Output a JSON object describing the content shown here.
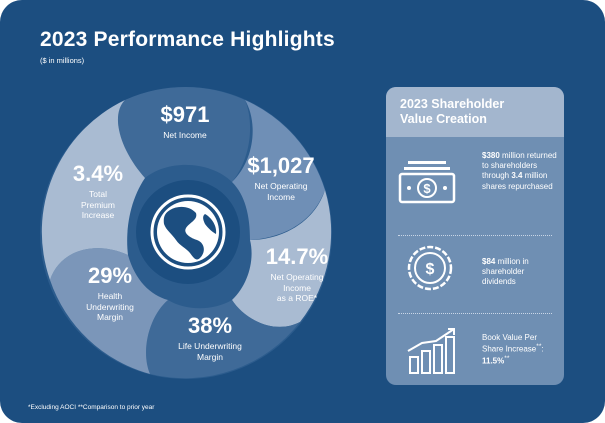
{
  "header": {
    "title": "2023 Performance Highlights",
    "subtitle": "($ in millions)"
  },
  "wheel": {
    "segments": [
      {
        "value": "$971",
        "label": "Net Income"
      },
      {
        "value": "$1,027",
        "label_lines": [
          "Net Operating",
          "Income"
        ]
      },
      {
        "value": "14.7%",
        "label_lines": [
          "Net Operating",
          "Income",
          "as a ROE*"
        ]
      },
      {
        "value": "38%",
        "label_lines": [
          "Life Underwriting",
          "Margin"
        ]
      },
      {
        "value": "29%",
        "label_lines": [
          "Health",
          "Underwriting",
          "Margin"
        ]
      },
      {
        "value": "3.4%",
        "label_lines": [
          "Total",
          "Premium",
          "Increase"
        ]
      }
    ],
    "center_icon": "globe-icon"
  },
  "panel": {
    "title_lines": [
      "2023 Shareholder",
      "Value Creation"
    ],
    "items": [
      {
        "icon": "dollar-bill-icon",
        "bold_amount": "$380",
        "text_a": " million returned to shareholders through ",
        "bold_shares": "3.4",
        "text_b": " million shares repurchased"
      },
      {
        "icon": "dollar-coin-icon",
        "bold_amount": "$84",
        "text_a": " million in shareholder dividends"
      },
      {
        "icon": "bar-growth-icon",
        "text_a": "Book Value Per Share Increase",
        "marker": "**",
        "text_b": ": ",
        "bold_value": "11.5%",
        "marker_after": "**"
      }
    ]
  },
  "footnote": "*Excluding AOCI   **Comparison to prior year",
  "colors": {
    "background": "#1c4e80",
    "segment_light": "#a9bbd2",
    "segment_mid": "#7b96b9",
    "segment_dark": "#3c6694",
    "center": "#1c4e80"
  }
}
